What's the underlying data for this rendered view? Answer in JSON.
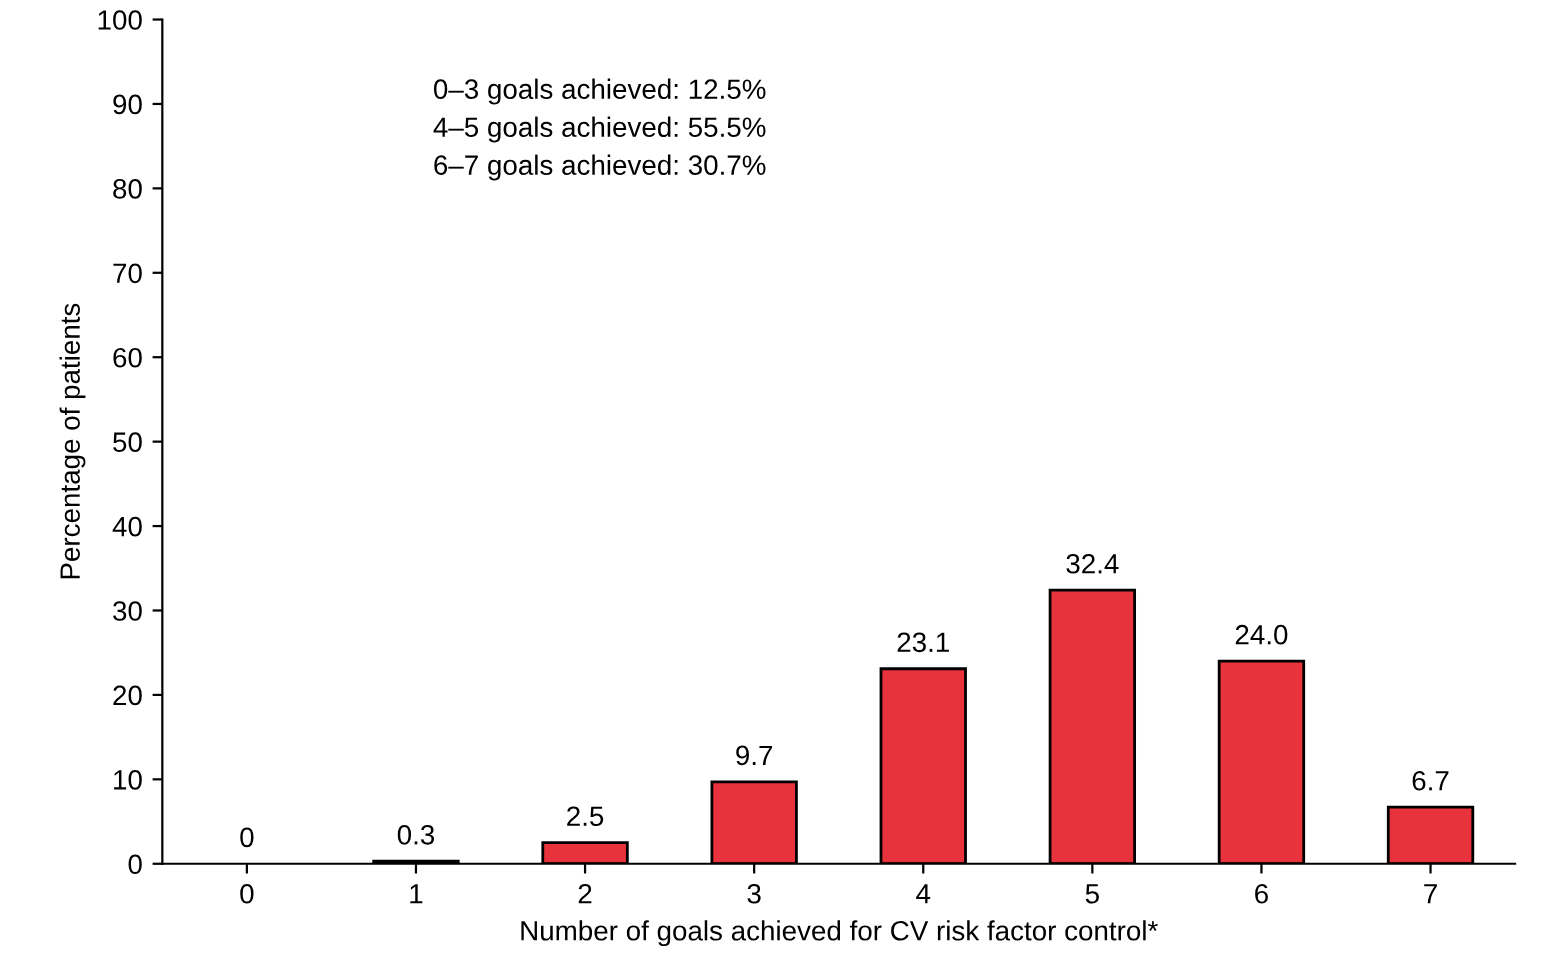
{
  "chart_data": {
    "type": "bar",
    "xlabel": "Number of goals achieved for CV risk factor control*",
    "ylabel": "Percentage of patients",
    "categories": [
      "0",
      "1",
      "2",
      "3",
      "4",
      "5",
      "6",
      "7"
    ],
    "values": [
      0,
      0.3,
      2.5,
      9.7,
      23.1,
      32.4,
      24.0,
      6.7
    ],
    "value_labels": [
      "0",
      "0.3",
      "2.5",
      "9.7",
      "23.1",
      "32.4",
      "24.0",
      "6.7"
    ],
    "color": "#e8323c",
    "ylim": [
      0,
      100
    ],
    "yticks": [
      0,
      10,
      20,
      30,
      40,
      50,
      60,
      70,
      80,
      90,
      100
    ],
    "grid": false,
    "legend": false,
    "annotations": [
      "0–3 goals achieved: 12.5%",
      "4–5 goals achieved: 55.5%",
      "6–7 goals achieved: 30.7%"
    ]
  }
}
